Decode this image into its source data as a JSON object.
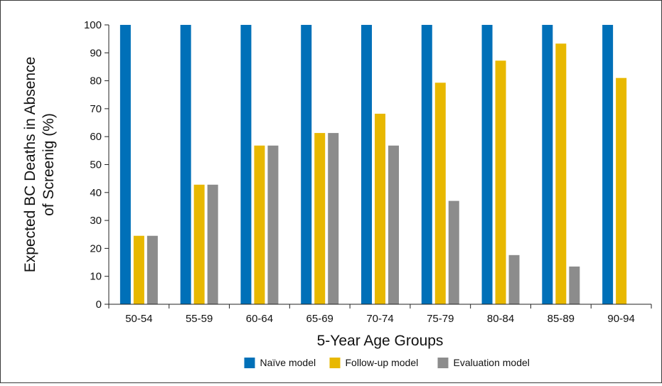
{
  "chart_data": {
    "type": "bar",
    "title": "",
    "xlabel": "5-Year Age Groups",
    "ylabel_lines": [
      "Expected BC Deaths in Absence",
      "of Screenig (%)"
    ],
    "categories": [
      "50-54",
      "55-59",
      "60-64",
      "65-69",
      "70-74",
      "75-79",
      "80-84",
      "85-89",
      "90-94"
    ],
    "ylim": [
      0,
      100
    ],
    "yticks": [
      "0",
      "10",
      "20",
      "30",
      "40",
      "50",
      "60",
      "70",
      "80",
      "90",
      "100"
    ],
    "grid": false,
    "legend_position": "bottom-center",
    "series": [
      {
        "name": "Naïve model",
        "color": "#0070b8",
        "values": [
          100,
          100,
          100,
          100,
          100,
          100,
          100,
          100,
          100
        ]
      },
      {
        "name": "Follow-up model",
        "color": "#e8b800",
        "values": [
          24.5,
          42.8,
          56.8,
          61.3,
          68.2,
          79.3,
          87.2,
          93.3,
          81
        ]
      },
      {
        "name": "Evaluation model",
        "color": "#8c8c8c",
        "values": [
          24.5,
          42.8,
          56.8,
          61.3,
          56.8,
          37,
          17.6,
          13.5,
          null
        ]
      }
    ]
  }
}
